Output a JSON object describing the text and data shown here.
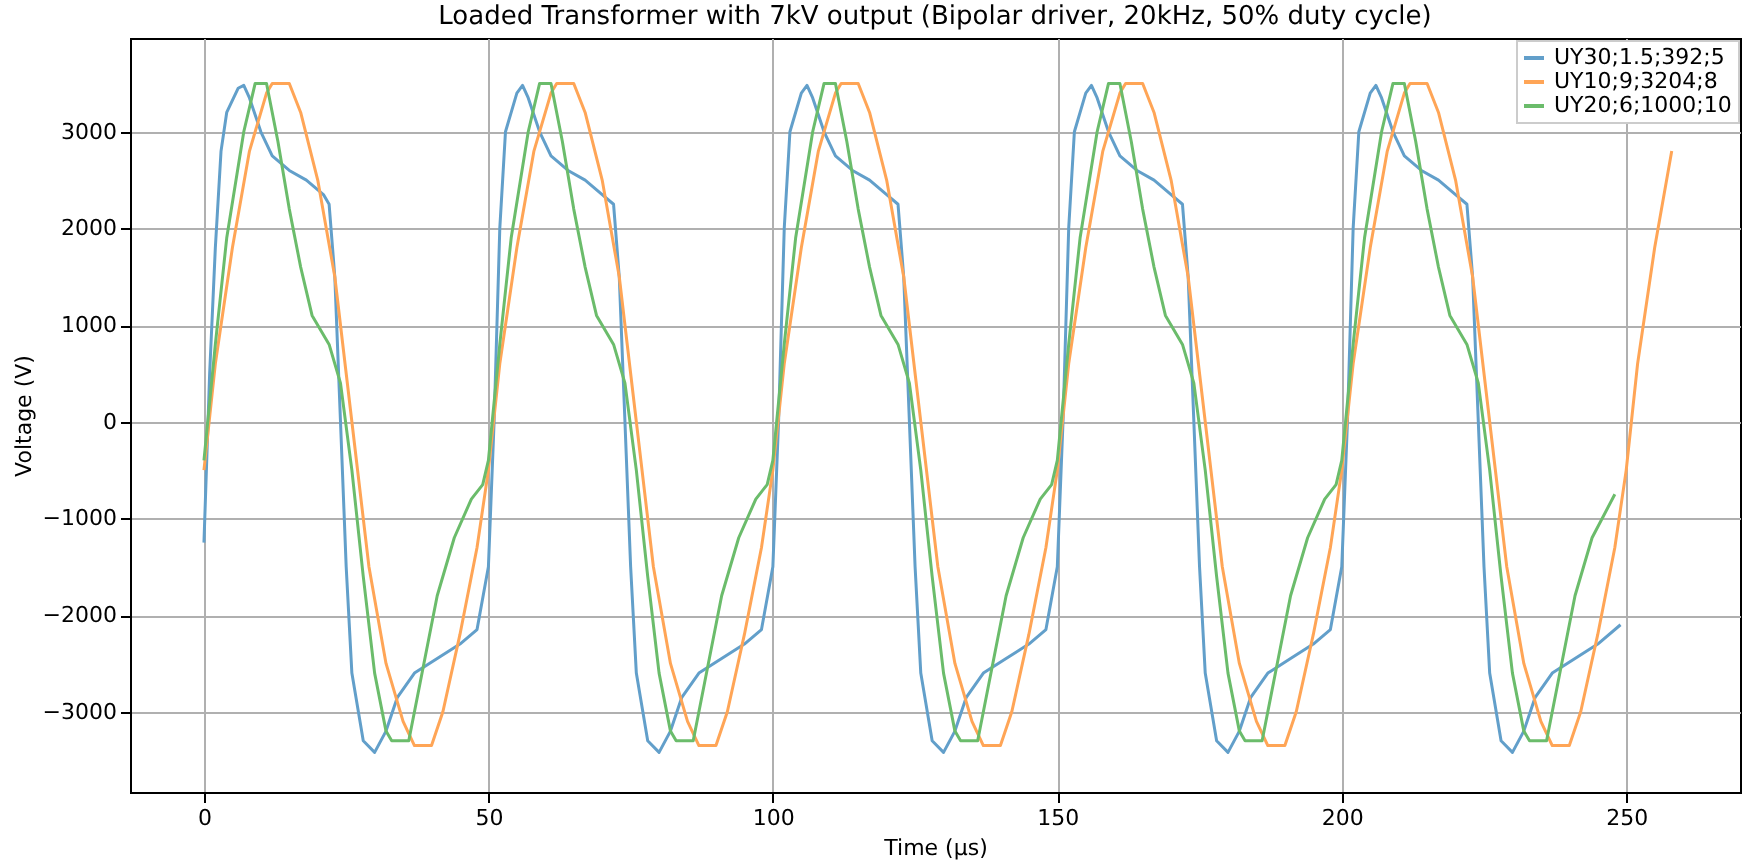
{
  "chart_data": {
    "type": "line",
    "title": "Loaded Transformer with 7kV output (Bipolar driver, 20kHz, 50% duty cycle)",
    "xlabel": "Time (µs)",
    "ylabel": "Voltage (V)",
    "xlim": [
      -13,
      270
    ],
    "ylim": [
      -3830,
      3970
    ],
    "xticks": [
      0,
      50,
      100,
      150,
      200,
      250
    ],
    "yticks": [
      -3000,
      -2000,
      -1000,
      0,
      1000,
      2000,
      3000
    ],
    "grid": true,
    "legend": "top right",
    "marker": "none",
    "line_style": "solid",
    "series": [
      {
        "name": "UY30;1.5;392;5",
        "color": "#629fca",
        "x": [
          0,
          1,
          2,
          3,
          4,
          6,
          7,
          8,
          10,
          12,
          15,
          18,
          21,
          22,
          23,
          24,
          25,
          26,
          28,
          30,
          32,
          34,
          37,
          41,
          45,
          48,
          50,
          51,
          52,
          53,
          55,
          56,
          57,
          59,
          61,
          64,
          67,
          70,
          72,
          73,
          74,
          75,
          76,
          78,
          80,
          82,
          84,
          87,
          91,
          95,
          98,
          100,
          101,
          102,
          103,
          105,
          106,
          107,
          109,
          111,
          114,
          117,
          120,
          122,
          123,
          124,
          125,
          126,
          128,
          130,
          132,
          134,
          137,
          141,
          145,
          148,
          150,
          151,
          152,
          153,
          155,
          156,
          157,
          159,
          161,
          164,
          167,
          170,
          172,
          173,
          174,
          175,
          176,
          178,
          180,
          182,
          184,
          187,
          191,
          195,
          198,
          200,
          201,
          202,
          203,
          205,
          206,
          207,
          209,
          211,
          214,
          217,
          220,
          222,
          223,
          224,
          225,
          226,
          228,
          230,
          232,
          234,
          237,
          241,
          245,
          249
        ],
        "values": [
          -1250,
          500,
          1800,
          2800,
          3200,
          3450,
          3480,
          3350,
          3000,
          2750,
          2600,
          2500,
          2350,
          2250,
          1500,
          0,
          -1500,
          -2600,
          -3300,
          -3420,
          -3200,
          -2850,
          -2600,
          -2450,
          -2300,
          -2150,
          -1500,
          0,
          2000,
          3000,
          3400,
          3480,
          3350,
          3000,
          2750,
          2600,
          2500,
          2350,
          2250,
          1500,
          0,
          -1500,
          -2600,
          -3300,
          -3420,
          -3200,
          -2850,
          -2600,
          -2450,
          -2300,
          -2150,
          -1500,
          0,
          2000,
          3000,
          3400,
          3480,
          3350,
          3000,
          2750,
          2600,
          2500,
          2350,
          2250,
          1500,
          0,
          -1500,
          -2600,
          -3300,
          -3420,
          -3200,
          -2850,
          -2600,
          -2450,
          -2300,
          -2150,
          -1500,
          0,
          2000,
          3000,
          3400,
          3480,
          3350,
          3000,
          2750,
          2600,
          2500,
          2350,
          2250,
          1500,
          0,
          -1500,
          -2600,
          -3300,
          -3420,
          -3200,
          -2850,
          -2600,
          -2450,
          -2300,
          -2150,
          -1500,
          0,
          2000,
          3000,
          3400,
          3480,
          3350,
          3000,
          2750,
          2600,
          2500,
          2350,
          2250,
          1500,
          0,
          -1500,
          -2600,
          -3300,
          -3420,
          -3200,
          -2850,
          -2600,
          -2450,
          -2300,
          -2100
        ]
      },
      {
        "name": "UY10;9;3204;8",
        "color": "#ffa556",
        "x": [
          0,
          2,
          5,
          8,
          11,
          12,
          15,
          17,
          20,
          23,
          26,
          29,
          32,
          35,
          37,
          40,
          42,
          45,
          48,
          50,
          52,
          55,
          58,
          61,
          62,
          65,
          67,
          70,
          73,
          76,
          79,
          82,
          85,
          87,
          90,
          92,
          95,
          98,
          100,
          102,
          105,
          108,
          111,
          112,
          115,
          117,
          120,
          123,
          126,
          129,
          132,
          135,
          137,
          140,
          142,
          145,
          148,
          150,
          152,
          155,
          158,
          161,
          162,
          165,
          167,
          170,
          173,
          176,
          179,
          182,
          185,
          187,
          190,
          192,
          195,
          198,
          200,
          202,
          205,
          208,
          211,
          212,
          215,
          217,
          220,
          223,
          226,
          229,
          232,
          235,
          237,
          240,
          242,
          245,
          248,
          250,
          252,
          255,
          258
        ],
        "values": [
          -500,
          600,
          1800,
          2800,
          3400,
          3500,
          3500,
          3200,
          2500,
          1500,
          0,
          -1500,
          -2500,
          -3100,
          -3350,
          -3350,
          -3000,
          -2200,
          -1300,
          -500,
          600,
          1800,
          2800,
          3400,
          3500,
          3500,
          3200,
          2500,
          1500,
          0,
          -1500,
          -2500,
          -3100,
          -3350,
          -3350,
          -3000,
          -2200,
          -1300,
          -500,
          600,
          1800,
          2800,
          3400,
          3500,
          3500,
          3200,
          2500,
          1500,
          0,
          -1500,
          -2500,
          -3100,
          -3350,
          -3350,
          -3000,
          -2200,
          -1300,
          -500,
          600,
          1800,
          2800,
          3400,
          3500,
          3500,
          3200,
          2500,
          1500,
          0,
          -1500,
          -2500,
          -3100,
          -3350,
          -3350,
          -3000,
          -2200,
          -1300,
          -500,
          600,
          1800,
          2800,
          3400,
          3500,
          3500,
          3200,
          2500,
          1500,
          0,
          -1500,
          -2500,
          -3100,
          -3350,
          -3350,
          -3000,
          -2200,
          -1300,
          -500,
          600,
          1800,
          2800
        ]
      },
      {
        "name": "UY20;6;1000;10",
        "color": "#6bbc6b",
        "x": [
          0,
          2,
          4,
          7,
          9,
          11,
          13,
          15,
          17,
          19,
          22,
          24,
          26,
          28,
          30,
          32,
          33,
          36,
          38,
          41,
          44,
          47,
          49,
          50,
          52,
          54,
          57,
          59,
          61,
          63,
          65,
          67,
          69,
          72,
          74,
          76,
          78,
          80,
          82,
          83,
          86,
          88,
          91,
          94,
          97,
          99,
          100,
          102,
          104,
          107,
          109,
          111,
          113,
          115,
          117,
          119,
          122,
          124,
          126,
          128,
          130,
          132,
          133,
          136,
          138,
          141,
          144,
          147,
          149,
          150,
          152,
          154,
          157,
          159,
          161,
          163,
          165,
          167,
          169,
          172,
          174,
          176,
          178,
          180,
          182,
          183,
          186,
          188,
          191,
          194,
          197,
          199,
          200,
          202,
          204,
          207,
          209,
          211,
          213,
          215,
          217,
          219,
          222,
          224,
          226,
          228,
          230,
          232,
          233,
          236,
          238,
          241,
          244,
          248
        ],
        "values": [
          -400,
          800,
          1900,
          3000,
          3500,
          3500,
          2900,
          2200,
          1600,
          1100,
          800,
          400,
          -500,
          -1600,
          -2600,
          -3200,
          -3300,
          -3300,
          -2700,
          -1800,
          -1200,
          -800,
          -650,
          -400,
          800,
          1900,
          3000,
          3500,
          3500,
          2900,
          2200,
          1600,
          1100,
          800,
          400,
          -500,
          -1600,
          -2600,
          -3200,
          -3300,
          -3300,
          -2700,
          -1800,
          -1200,
          -800,
          -650,
          -400,
          800,
          1900,
          3000,
          3500,
          3500,
          2900,
          2200,
          1600,
          1100,
          800,
          400,
          -500,
          -1600,
          -2600,
          -3200,
          -3300,
          -3300,
          -2700,
          -1800,
          -1200,
          -800,
          -650,
          -400,
          800,
          1900,
          3000,
          3500,
          3500,
          2900,
          2200,
          1600,
          1100,
          800,
          400,
          -500,
          -1600,
          -2600,
          -3200,
          -3300,
          -3300,
          -2700,
          -1800,
          -1200,
          -800,
          -650,
          -400,
          800,
          1900,
          3000,
          3500,
          3500,
          2900,
          2200,
          1600,
          1100,
          800,
          400,
          -500,
          -1600,
          -2600,
          -3200,
          -3300,
          -3300,
          -2700,
          -1800,
          -1200,
          -750
        ]
      }
    ]
  }
}
